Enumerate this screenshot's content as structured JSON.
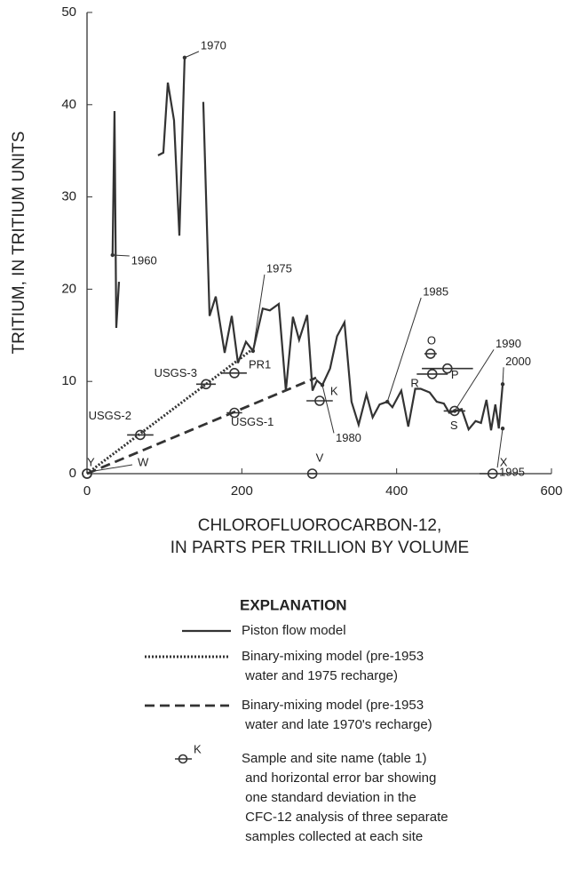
{
  "chart_data": {
    "type": "line",
    "xlabel": [
      "CHLOROFLUOROCARBON-12,",
      "IN PARTS PER TRILLION BY VOLUME"
    ],
    "ylabel": "TRITIUM, IN TRITIUM UNITS",
    "xlim": [
      0,
      600
    ],
    "xticks": [
      0,
      200,
      400,
      600
    ],
    "ylim": [
      0,
      50
    ],
    "yticks": [
      0,
      10,
      20,
      30,
      40,
      50
    ],
    "color": "#333333",
    "series": [
      {
        "name": "Piston flow model",
        "style": "solid",
        "x": [
          33,
          35.5,
          37.8,
          41.3,
          null,
          91.7,
          98.6,
          104.4,
          112.4,
          119.3,
          126.1,
          null,
          150.2,
          158.3,
          166.3,
          177.8,
          187,
          195,
          205.3,
          214.4,
          227,
          236.2,
          247.7,
          256.9,
          266,
          274,
          284.4,
          291.3,
          297,
          304,
          314,
          323,
          332.6,
          341.7,
          350.9,
          361,
          369,
          378,
          388,
          394.5,
          406,
          415,
          424,
          431,
          442.7,
          451.8,
          461,
          468,
          475,
          484,
          493,
          502,
          509,
          516,
          522,
          527.5,
          532,
          537
        ],
        "values": [
          23.7,
          39.3,
          15.8,
          20.8,
          null,
          34.5,
          34.8,
          42.4,
          38.3,
          25.8,
          45.1,
          null,
          40.3,
          17.1,
          19.2,
          13.1,
          17.1,
          12.0,
          14.3,
          13.3,
          17.9,
          17.7,
          18.4,
          9.0,
          17.0,
          14.5,
          17.2,
          9.0,
          10.1,
          9.6,
          11.4,
          14.9,
          16.4,
          7.8,
          5.3,
          8.6,
          6.1,
          7.5,
          7.8,
          7.2,
          9.0,
          5.1,
          9.2,
          9.2,
          8.8,
          7.8,
          7.6,
          6.6,
          6.8,
          7.0,
          4.8,
          5.7,
          5.5,
          8.0,
          4.7,
          7.5,
          4.9,
          9.7
        ]
      },
      {
        "name": "Binary-mixing model (pre-1953 water and 1975 recharge)",
        "style": "dotted",
        "x": [
          0,
          214
        ],
        "values": [
          0,
          13.5
        ]
      },
      {
        "name": "Binary-mixing model (pre-1953 water and late 1970's recharge)",
        "style": "dashed",
        "x": [
          0,
          296
        ],
        "values": [
          0,
          10.4
        ]
      }
    ],
    "samples": {
      "names": [
        "Y",
        "W",
        "USGS-2",
        "USGS-3",
        "PR1",
        "USGS-1",
        "K",
        "V",
        "O",
        "R",
        "P",
        "S",
        "X"
      ],
      "x": [
        0,
        0,
        68.8,
        153.7,
        190.4,
        190.4,
        300.5,
        291,
        443.8,
        446,
        465.6,
        474.8,
        524
      ],
      "values": [
        0,
        0,
        4.2,
        9.7,
        10.9,
        6.6,
        7.9,
        0,
        13.0,
        10.8,
        11.4,
        6.8,
        0
      ],
      "x_error": [
        0,
        0,
        17,
        12.6,
        16,
        10,
        17,
        5,
        8,
        20,
        33,
        14,
        17
      ]
    },
    "annotations": [
      {
        "text": "1960",
        "x": 33,
        "y": 23.7
      },
      {
        "text": "1970",
        "x": 126.1,
        "y": 45.1
      },
      {
        "text": "1975",
        "x": 214.4,
        "y": 13.3
      },
      {
        "text": "1980",
        "x": 304,
        "y": 9.6
      },
      {
        "text": "1985",
        "x": 388,
        "y": 7.8
      },
      {
        "text": "1990",
        "x": 475,
        "y": 6.8
      },
      {
        "text": "1995",
        "x": 537,
        "y": 4.9
      },
      {
        "text": "2000",
        "x": 537,
        "y": 9.7
      }
    ],
    "legend": {
      "title": "EXPLANATION",
      "entries": [
        [
          "Piston flow model"
        ],
        [
          "Binary-mixing model (pre-1953",
          " water and 1975 recharge)"
        ],
        [
          "Binary-mixing model (pre-1953",
          " water and late 1970's recharge)"
        ],
        [
          "Sample and site name (table 1)",
          " and horizontal error bar showing",
          " one standard deviation in the",
          " CFC-12 analysis of three separate",
          " samples collected at each site"
        ]
      ],
      "sample_label": "K"
    }
  }
}
